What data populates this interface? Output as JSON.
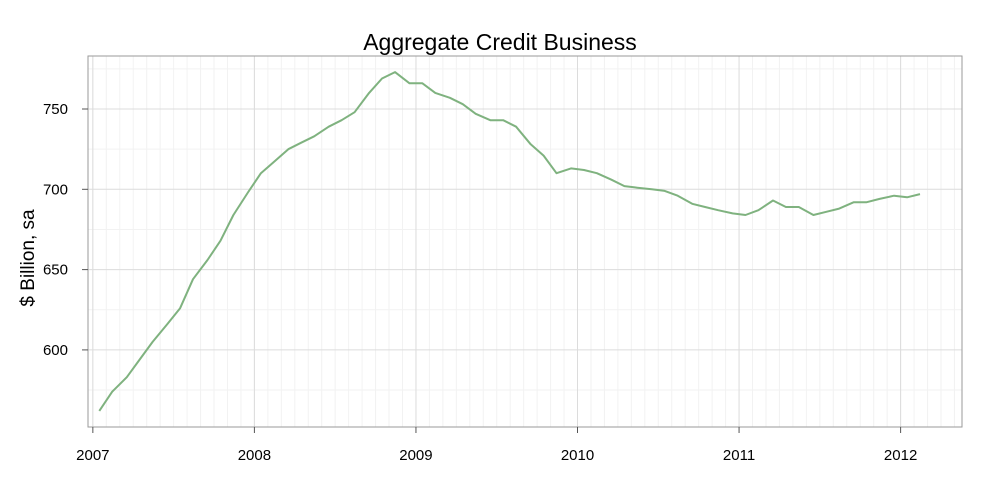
{
  "chart_data": {
    "type": "line",
    "title": "Aggregate Credit  Business",
    "xlabel": "",
    "ylabel": "$ Billion, sa",
    "xlim": [
      2006.97,
      2012.38
    ],
    "ylim": [
      552,
      783
    ],
    "x_ticks": [
      2007,
      2008,
      2009,
      2010,
      2011,
      2012
    ],
    "x_tick_labels": [
      "2007",
      "2008",
      "2009",
      "2010",
      "2011",
      "2012"
    ],
    "y_ticks": [
      600,
      650,
      700,
      750
    ],
    "y_tick_labels": [
      "600",
      "650",
      "700",
      "750"
    ],
    "grid": true,
    "line_color": "#7fb27f",
    "series": [
      {
        "x": [
          2007.04,
          2007.12,
          2007.21,
          2007.29,
          2007.37,
          2007.46,
          2007.54,
          2007.62,
          2007.71,
          2007.79,
          2007.87,
          2007.96,
          2008.04,
          2008.12,
          2008.21,
          2008.29,
          2008.37,
          2008.46,
          2008.54,
          2008.62,
          2008.71,
          2008.79,
          2008.87,
          2008.96,
          2009.04,
          2009.12,
          2009.21,
          2009.29,
          2009.37,
          2009.46,
          2009.54,
          2009.62,
          2009.71,
          2009.79,
          2009.87,
          2009.96,
          2010.04,
          2010.12,
          2010.21,
          2010.29,
          2010.37,
          2010.46,
          2010.54,
          2010.62,
          2010.71,
          2010.79,
          2010.87,
          2010.96,
          2011.04,
          2011.12,
          2011.21,
          2011.29,
          2011.37,
          2011.46,
          2011.54,
          2011.62,
          2011.71,
          2011.79,
          2011.87,
          2011.96,
          2012.04,
          2012.12
        ],
        "values": [
          562,
          574,
          583,
          594,
          605,
          616,
          626,
          644,
          656,
          668,
          684,
          698,
          710,
          717,
          725,
          729,
          733,
          739,
          743,
          748,
          760,
          769,
          773,
          766,
          766,
          760,
          757,
          753,
          747,
          743,
          743,
          739,
          728,
          721,
          710,
          713,
          712,
          710,
          706,
          702,
          701,
          700,
          699,
          696,
          691,
          689,
          687,
          685,
          684,
          687,
          693,
          689,
          689,
          684,
          686,
          688,
          692,
          692,
          694,
          696,
          695,
          697
        ]
      }
    ]
  }
}
